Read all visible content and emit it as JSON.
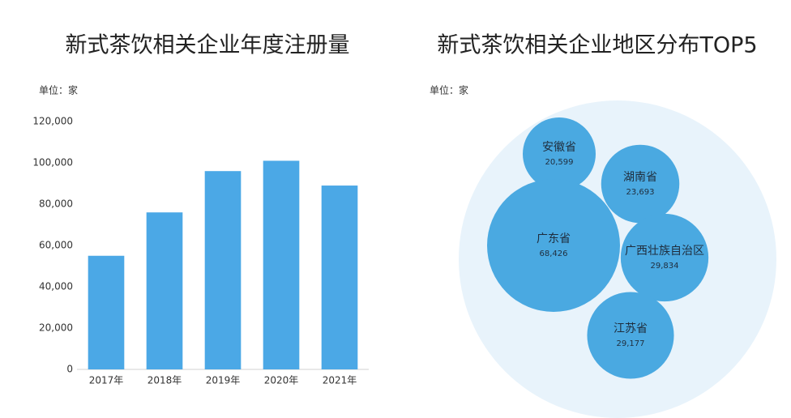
{
  "chart_data": [
    {
      "type": "bar",
      "title": "新式茶饮相关企业年度注册量",
      "unit": "单位：家",
      "categories": [
        "2017年",
        "2018年",
        "2019年",
        "2020年",
        "2021年"
      ],
      "values": [
        55000,
        76000,
        96000,
        101000,
        89000
      ],
      "color": "#4ba8e6",
      "ylim": [
        0,
        120000
      ],
      "yticks": [
        0,
        {
          "value": 20000,
          "label": "20,000"
        },
        {
          "value": 40000,
          "label": "40,000"
        },
        {
          "value": 60000,
          "label": "60,000"
        },
        {
          "value": 80000,
          "label": "80,000"
        },
        {
          "value": 100000,
          "label": "100,000"
        },
        {
          "value": 120000,
          "label": "120,000"
        }
      ],
      "grid": false
    },
    {
      "type": "bubble",
      "title": "新式茶饮相关企业地区分布TOP5",
      "unit": "单位：家",
      "categories": [
        "安徽省",
        "湖南省",
        "广东省",
        "广西壮族自治区",
        "江苏省"
      ],
      "values": [
        20599,
        23693,
        68426,
        29834,
        29177
      ],
      "value_labels": [
        "20,599",
        "23,693",
        "68,426",
        "29,834",
        "29,177"
      ],
      "color": "#4aa9e1"
    }
  ]
}
